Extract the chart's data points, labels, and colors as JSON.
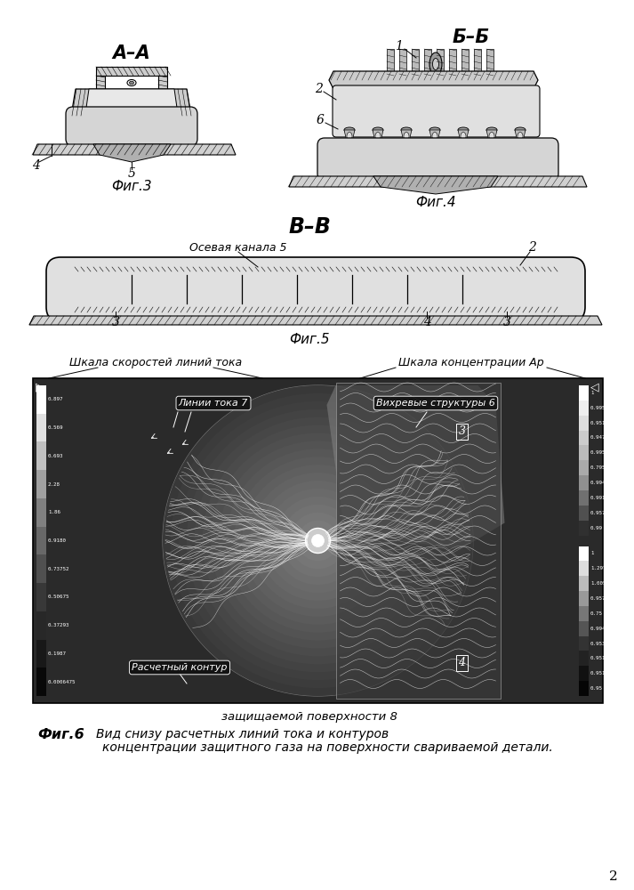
{
  "bg_color": "#ffffff",
  "fig_width": 7.13,
  "fig_height": 10.0,
  "page_num": "2",
  "fig3_label": "Фиг.3",
  "fig4_label": "Фиг.4",
  "fig5_label": "Фиг.5",
  "section_AA": "А–А",
  "section_BB": "Б–Б",
  "section_VV": "В–В",
  "label_osevaya": "Осевая канала 5",
  "label_linii_toka": "Линии тока 7",
  "label_vihr": "Вихревые структуры 6",
  "label_raschet": "Расчетный контур",
  "label_zashch": "защищаемой поверхности 8",
  "label_shkala_v": "Шкала скоростей линий тока",
  "label_shkala_ar": "Шкала концентрации Ар",
  "caption_bold": "Фиг.6",
  "caption_text": "Вид снизу расчетных линий тока и контуров",
  "caption_line2": "концентрации защитного газа на поверхности свариваемой детали."
}
